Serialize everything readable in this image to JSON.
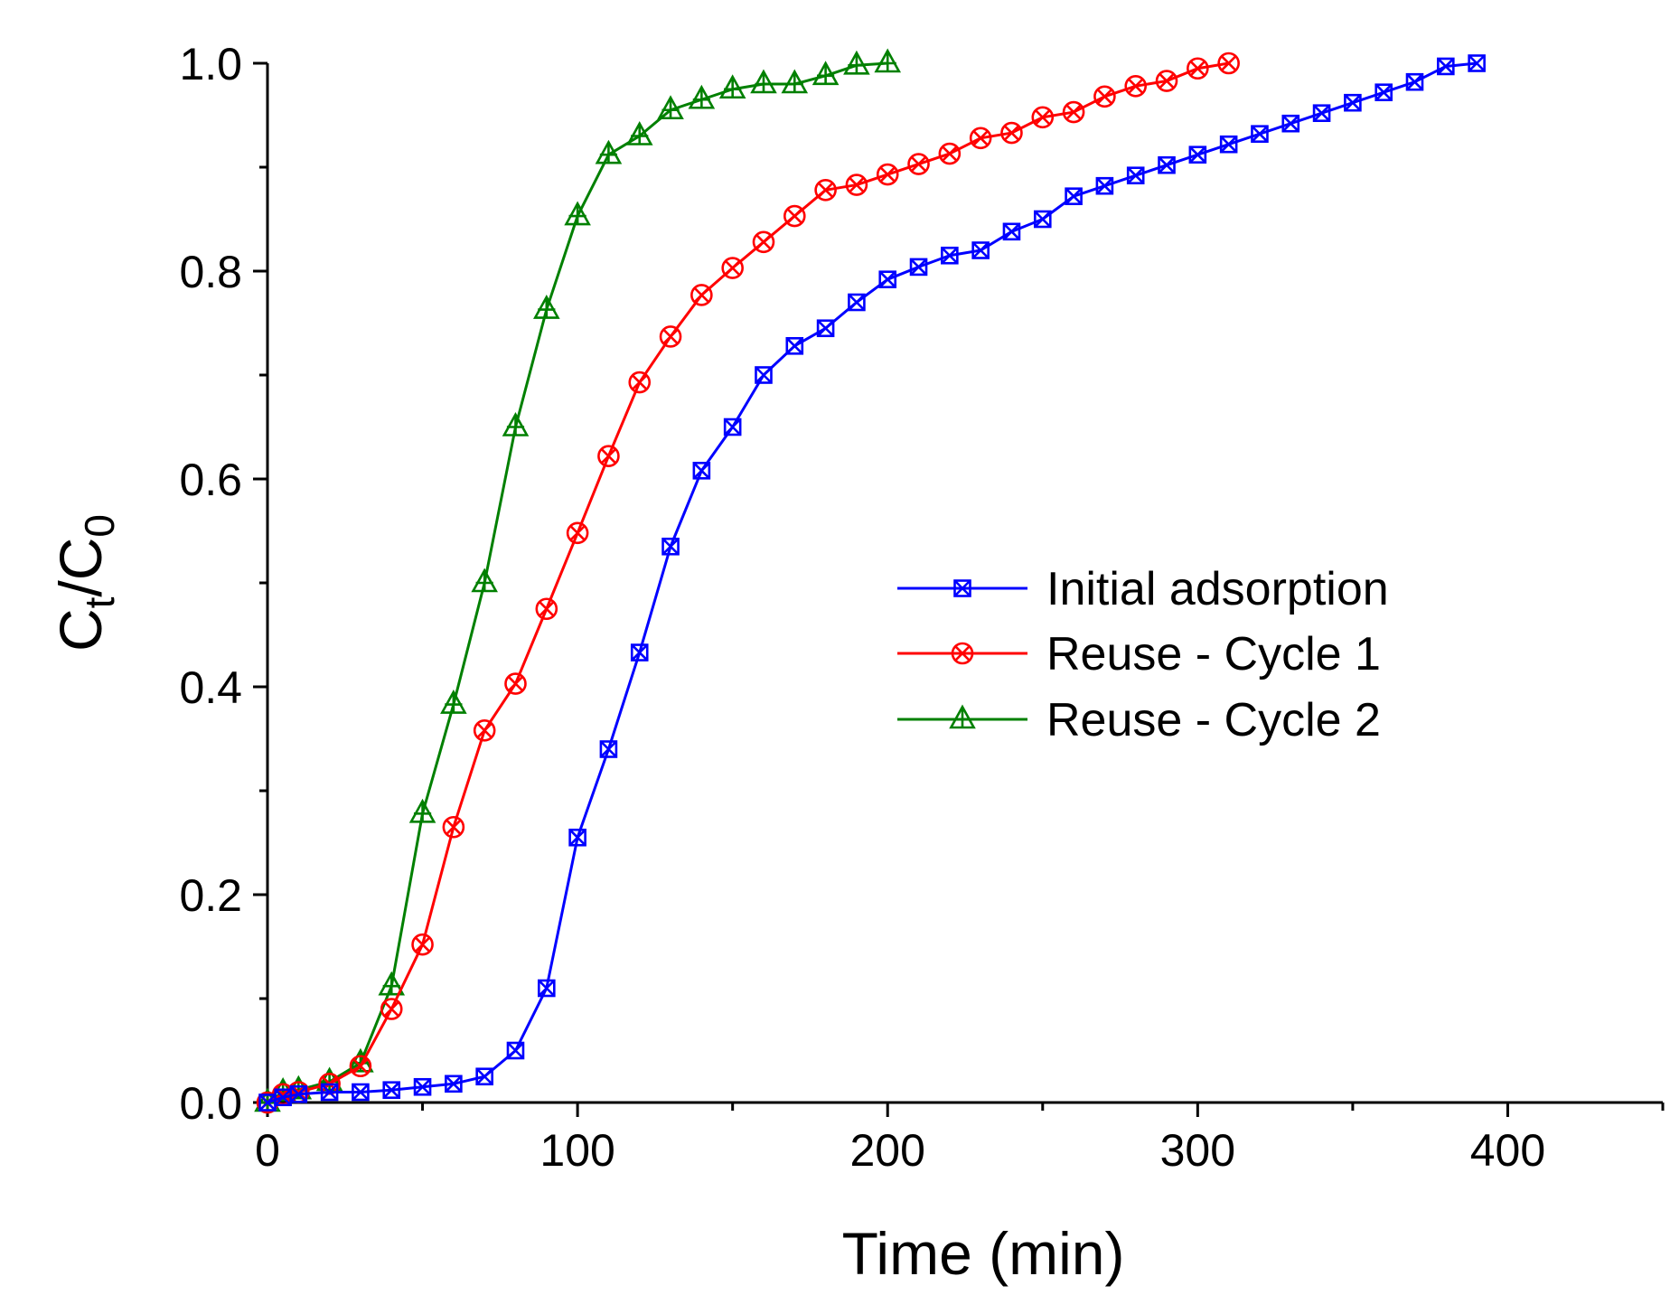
{
  "chart_data": {
    "type": "line",
    "xlabel": "Time (min)",
    "ylabel": {
      "main": "C",
      "sub1": "t",
      "slash": "/C",
      "sub2": "0"
    },
    "xlim": [
      0,
      450
    ],
    "ylim": [
      0,
      1.0
    ],
    "x_ticks": [
      0,
      100,
      200,
      300,
      400
    ],
    "x_tick_labels": [
      "0",
      "100",
      "200",
      "300",
      "400"
    ],
    "y_ticks": [
      0.0,
      0.2,
      0.4,
      0.6,
      0.8,
      1.0
    ],
    "y_tick_labels": [
      "0.0",
      "0.2",
      "0.4",
      "0.6",
      "0.8",
      "1.0"
    ],
    "grid": false,
    "legend_position": "center-right",
    "series": [
      {
        "name": "Initial adsorption",
        "color": "#0000ff",
        "marker": "square-x",
        "x": [
          0,
          5,
          10,
          20,
          30,
          40,
          50,
          60,
          70,
          80,
          90,
          100,
          110,
          120,
          130,
          140,
          150,
          160,
          170,
          180,
          190,
          200,
          210,
          220,
          230,
          240,
          250,
          260,
          270,
          280,
          290,
          300,
          310,
          320,
          330,
          340,
          350,
          360,
          370,
          380,
          390
        ],
        "y": [
          0.0,
          0.005,
          0.008,
          0.01,
          0.01,
          0.012,
          0.015,
          0.018,
          0.025,
          0.05,
          0.11,
          0.255,
          0.34,
          0.433,
          0.535,
          0.608,
          0.65,
          0.7,
          0.728,
          0.745,
          0.77,
          0.792,
          0.804,
          0.815,
          0.82,
          0.838,
          0.85,
          0.872,
          0.882,
          0.892,
          0.902,
          0.912,
          0.922,
          0.932,
          0.942,
          0.952,
          0.962,
          0.972,
          0.982,
          0.997,
          1.0
        ]
      },
      {
        "name": "Reuse - Cycle 1",
        "color": "#ff0000",
        "marker": "circle-x",
        "x": [
          0,
          5,
          10,
          20,
          30,
          40,
          50,
          60,
          70,
          80,
          90,
          100,
          110,
          120,
          130,
          140,
          150,
          160,
          170,
          180,
          190,
          200,
          210,
          220,
          230,
          240,
          250,
          260,
          270,
          280,
          290,
          300,
          310
        ],
        "y": [
          0.0,
          0.008,
          0.01,
          0.018,
          0.035,
          0.09,
          0.152,
          0.265,
          0.358,
          0.403,
          0.475,
          0.548,
          0.622,
          0.693,
          0.737,
          0.777,
          0.803,
          0.828,
          0.853,
          0.878,
          0.883,
          0.893,
          0.903,
          0.913,
          0.928,
          0.933,
          0.948,
          0.953,
          0.968,
          0.978,
          0.983,
          0.995,
          1.0
        ]
      },
      {
        "name": "Reuse - Cycle 2",
        "color": "#008000",
        "marker": "triangle-plus",
        "x": [
          0,
          5,
          10,
          20,
          30,
          40,
          50,
          60,
          70,
          80,
          90,
          100,
          110,
          120,
          130,
          140,
          150,
          160,
          170,
          180,
          190,
          200
        ],
        "y": [
          0.0,
          0.01,
          0.012,
          0.02,
          0.038,
          0.112,
          0.278,
          0.383,
          0.5,
          0.65,
          0.763,
          0.853,
          0.912,
          0.93,
          0.955,
          0.965,
          0.975,
          0.98,
          0.98,
          0.988,
          0.998,
          1.0
        ]
      }
    ]
  }
}
